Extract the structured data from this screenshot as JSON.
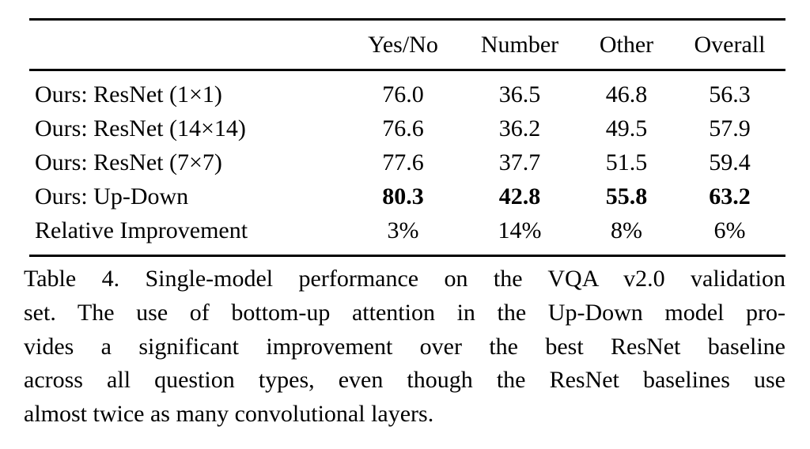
{
  "colors": {
    "background": "#ffffff",
    "text": "#000000",
    "rule": "#000000"
  },
  "table": {
    "columns": [
      "",
      "Yes/No",
      "Number",
      "Other",
      "Overall"
    ],
    "rows": [
      {
        "label": "Ours: ResNet (1×1)",
        "values": [
          "76.0",
          "36.5",
          "46.8",
          "56.3"
        ],
        "bold": false
      },
      {
        "label": "Ours: ResNet (14×14)",
        "values": [
          "76.6",
          "36.2",
          "49.5",
          "57.9"
        ],
        "bold": false
      },
      {
        "label": "Ours: ResNet (7×7)",
        "values": [
          "77.6",
          "37.7",
          "51.5",
          "59.4"
        ],
        "bold": false
      },
      {
        "label": "Ours: Up-Down",
        "values": [
          "80.3",
          "42.8",
          "55.8",
          "63.2"
        ],
        "bold": true
      },
      {
        "label": "Relative Improvement",
        "values": [
          "3%",
          "14%",
          "8%",
          "6%"
        ],
        "bold": false
      }
    ]
  },
  "caption": {
    "label": "Table 4.",
    "full_text": "Table 4. Single-model performance on the VQA v2.0 validation set. The use of bottom-up attention in the Up-Down model provides a significant improvement over the best ResNet baseline across all question types, even though the ResNet baselines use almost twice as many convolutional layers.",
    "lines": [
      "Table 4. Single-model performance on the VQA v2.0 validation",
      "set. The use of bottom-up attention in the Up-Down model pro-",
      "vides a significant improvement over the best ResNet baseline",
      "across all question types, even though the ResNet baselines use",
      "almost twice as many convolutional layers."
    ]
  }
}
